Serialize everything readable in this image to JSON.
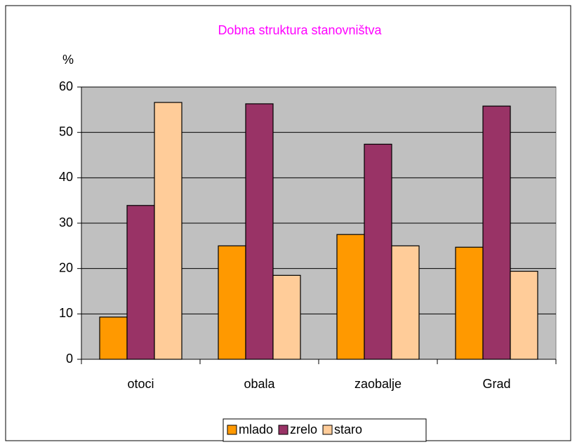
{
  "chart_data": {
    "type": "bar",
    "title": "Dobna struktura stanovništva",
    "ylabel": "%",
    "categories": [
      "otoci",
      "obala",
      "zaobalje",
      "Grad"
    ],
    "series": [
      {
        "name": "mlado",
        "color": "#ff9900",
        "values": [
          9.3,
          25.0,
          27.5,
          24.7
        ]
      },
      {
        "name": "zrelo",
        "color": "#993366",
        "values": [
          33.9,
          56.3,
          47.4,
          55.8
        ]
      },
      {
        "name": "staro",
        "color": "#ffcc99",
        "values": [
          56.6,
          18.5,
          25.0,
          19.4
        ]
      }
    ],
    "ylim": [
      0,
      60
    ],
    "yticks": [
      0,
      10,
      20,
      30,
      40,
      50,
      60
    ],
    "grid": true,
    "legend": "bottom"
  }
}
